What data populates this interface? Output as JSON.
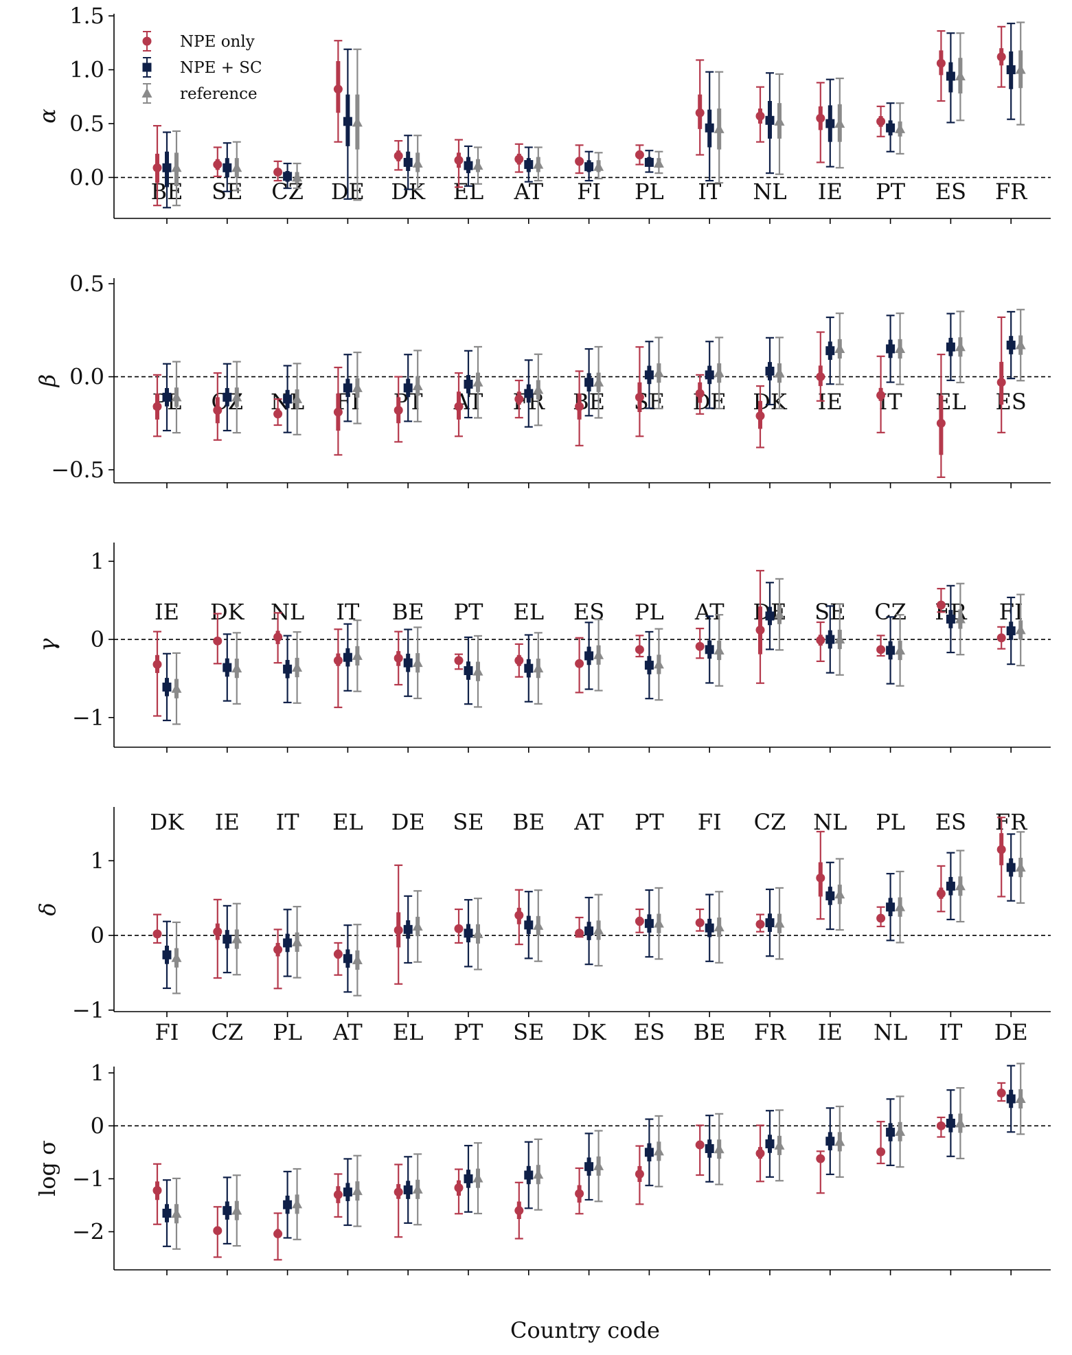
{
  "figure": {
    "xlabel": "Country code"
  },
  "legend": {
    "entries": [
      {
        "label": "NPE only",
        "color": "#b5394c",
        "marker": "circle"
      },
      {
        "label": "NPE + SC",
        "color": "#0f2048",
        "marker": "square"
      },
      {
        "label": "reference",
        "color": "#8a8a8a",
        "marker": "triangle"
      }
    ],
    "placement": "top-left of first panel"
  },
  "colors": {
    "npe": "#b5394c",
    "npesc": "#0f2048",
    "ref": "#8a8a8a",
    "zero_line": "#000000"
  },
  "chart_data": [
    {
      "type": "errorbar",
      "ylabel": "α",
      "ylim": [
        -0.38,
        1.52
      ],
      "yticks": [
        0.0,
        0.5,
        1.0,
        1.5
      ],
      "ytick_labels": [
        "0.0",
        "0.5",
        "1.0",
        "1.5"
      ],
      "categories": [
        "BE",
        "SE",
        "CZ",
        "DE",
        "DK",
        "EL",
        "AT",
        "FI",
        "PL",
        "IT",
        "NL",
        "IE",
        "PT",
        "ES",
        "FR"
      ],
      "series": [
        {
          "name": "NPE only",
          "value": [
            0.09,
            0.12,
            0.05,
            0.82,
            0.2,
            0.16,
            0.17,
            0.15,
            0.21,
            0.6,
            0.57,
            0.55,
            0.52,
            1.06,
            1.12
          ],
          "lo50": [
            -0.05,
            0.07,
            0.02,
            0.6,
            0.15,
            0.09,
            0.12,
            0.11,
            0.17,
            0.45,
            0.5,
            0.44,
            0.47,
            0.95,
            1.04
          ],
          "hi50": [
            0.22,
            0.17,
            0.08,
            1.08,
            0.25,
            0.23,
            0.22,
            0.19,
            0.25,
            0.77,
            0.64,
            0.66,
            0.57,
            1.18,
            1.2
          ],
          "lo95": [
            -0.26,
            0.01,
            -0.03,
            0.33,
            0.07,
            -0.09,
            0.05,
            0.04,
            0.12,
            0.21,
            0.33,
            0.14,
            0.38,
            0.71,
            0.84
          ],
          "hi95": [
            0.48,
            0.28,
            0.15,
            1.27,
            0.34,
            0.35,
            0.31,
            0.3,
            0.3,
            1.09,
            0.84,
            0.88,
            0.66,
            1.36,
            1.4
          ]
        },
        {
          "name": "NPE + SC",
          "value": [
            0.09,
            0.09,
            0.01,
            0.52,
            0.14,
            0.11,
            0.12,
            0.1,
            0.14,
            0.46,
            0.53,
            0.5,
            0.46,
            0.94,
            1.0
          ],
          "lo50": [
            -0.09,
            0.0,
            -0.04,
            0.29,
            0.06,
            0.04,
            0.05,
            0.05,
            0.1,
            0.28,
            0.36,
            0.33,
            0.39,
            0.79,
            0.82
          ],
          "hi50": [
            0.24,
            0.18,
            0.06,
            0.77,
            0.24,
            0.19,
            0.18,
            0.16,
            0.19,
            0.63,
            0.71,
            0.67,
            0.53,
            1.07,
            1.17
          ],
          "lo95": [
            -0.28,
            -0.13,
            -0.1,
            -0.2,
            -0.11,
            -0.08,
            -0.04,
            -0.03,
            0.05,
            -0.03,
            0.04,
            0.1,
            0.24,
            0.51,
            0.54
          ],
          "hi95": [
            0.42,
            0.32,
            0.13,
            1.19,
            0.39,
            0.29,
            0.28,
            0.24,
            0.25,
            0.98,
            0.97,
            0.91,
            0.69,
            1.34,
            1.43
          ]
        },
        {
          "name": "reference",
          "value": [
            0.09,
            0.09,
            0.0,
            0.51,
            0.13,
            0.11,
            0.12,
            0.1,
            0.13,
            0.45,
            0.52,
            0.5,
            0.45,
            0.94,
            1.0
          ],
          "lo50": [
            -0.08,
            0.0,
            -0.05,
            0.26,
            0.05,
            0.05,
            0.05,
            0.05,
            0.09,
            0.26,
            0.36,
            0.33,
            0.38,
            0.78,
            0.83
          ],
          "hi50": [
            0.23,
            0.18,
            0.05,
            0.77,
            0.23,
            0.17,
            0.19,
            0.16,
            0.18,
            0.64,
            0.69,
            0.68,
            0.52,
            1.11,
            1.18
          ],
          "lo95": [
            -0.26,
            -0.12,
            -0.1,
            -0.21,
            -0.11,
            -0.06,
            -0.03,
            -0.01,
            0.04,
            -0.05,
            0.03,
            0.09,
            0.22,
            0.53,
            0.49
          ],
          "hi95": [
            0.43,
            0.33,
            0.13,
            1.19,
            0.39,
            0.28,
            0.28,
            0.23,
            0.24,
            0.98,
            0.96,
            0.92,
            0.69,
            1.34,
            1.44
          ]
        }
      ]
    },
    {
      "type": "errorbar",
      "ylabel": "β",
      "ylim": [
        -0.57,
        0.53
      ],
      "yticks": [
        -0.5,
        0.0,
        0.5
      ],
      "ytick_labels": [
        "−0.5",
        "0.0",
        "0.5"
      ],
      "categories": [
        "PL",
        "CZ",
        "NL",
        "FI",
        "PT",
        "AT",
        "FR",
        "BE",
        "SE",
        "DE",
        "DK",
        "IE",
        "IT",
        "EL",
        "ES"
      ],
      "series": [
        {
          "name": "NPE only",
          "value": [
            -0.16,
            -0.18,
            -0.2,
            -0.19,
            -0.18,
            -0.16,
            -0.12,
            -0.16,
            -0.11,
            -0.09,
            -0.21,
            0.0,
            -0.1,
            -0.25,
            -0.03
          ],
          "lo50": [
            -0.23,
            -0.25,
            -0.22,
            -0.29,
            -0.25,
            -0.23,
            -0.15,
            -0.23,
            -0.19,
            -0.14,
            -0.28,
            -0.05,
            -0.13,
            -0.42,
            -0.15
          ],
          "hi50": [
            -0.09,
            -0.11,
            -0.17,
            -0.09,
            -0.11,
            -0.08,
            -0.08,
            -0.09,
            -0.03,
            -0.03,
            -0.13,
            0.06,
            -0.06,
            -0.1,
            0.08
          ],
          "lo95": [
            -0.32,
            -0.34,
            -0.26,
            -0.42,
            -0.35,
            -0.32,
            -0.22,
            -0.37,
            -0.32,
            -0.2,
            -0.38,
            -0.13,
            -0.3,
            -0.54,
            -0.3
          ],
          "hi95": [
            0.01,
            0.02,
            -0.12,
            0.05,
            0.0,
            0.02,
            -0.02,
            0.03,
            0.16,
            0.01,
            -0.05,
            0.24,
            0.11,
            0.12,
            0.32
          ]
        },
        {
          "name": "NPE + SC",
          "value": [
            -0.11,
            -0.11,
            -0.12,
            -0.06,
            -0.06,
            -0.04,
            -0.09,
            -0.03,
            0.01,
            0.01,
            0.03,
            0.14,
            0.15,
            0.16,
            0.17
          ]
        },
        {
          "name": "reference",
          "value": [
            -0.11,
            -0.11,
            -0.12,
            -0.06,
            -0.05,
            -0.03,
            -0.07,
            -0.03,
            0.02,
            0.02,
            0.02,
            0.15,
            0.15,
            0.16,
            0.17
          ]
        }
      ]
    },
    {
      "type": "errorbar",
      "ylabel": "γ",
      "ylim": [
        -1.38,
        1.24
      ],
      "yticks": [
        -1,
        0,
        1
      ],
      "ytick_labels": [
        "−1",
        "0",
        "1"
      ],
      "categories": [
        "IE",
        "DK",
        "NL",
        "IT",
        "BE",
        "PT",
        "EL",
        "ES",
        "PL",
        "AT",
        "DE",
        "SE",
        "CZ",
        "FR",
        "FI"
      ],
      "series": [
        {
          "name": "NPE only",
          "value": [
            -0.32,
            -0.02,
            0.03,
            -0.27,
            -0.24,
            -0.27,
            -0.27,
            -0.31,
            -0.13,
            -0.09,
            0.12,
            -0.01,
            -0.13,
            0.44,
            0.02
          ],
          "lo50": [
            -0.43,
            -0.06,
            -0.06,
            -0.34,
            -0.34,
            -0.29,
            -0.34,
            -0.32,
            -0.17,
            -0.14,
            -0.19,
            -0.08,
            -0.16,
            0.42,
            -0.02
          ],
          "hi50": [
            -0.2,
            0.03,
            0.11,
            -0.18,
            -0.15,
            -0.24,
            -0.2,
            -0.29,
            -0.09,
            -0.05,
            0.42,
            0.06,
            -0.09,
            0.46,
            0.06
          ],
          "lo95": [
            -0.98,
            -0.31,
            -0.3,
            -0.87,
            -0.58,
            -0.38,
            -0.48,
            -0.68,
            -0.22,
            -0.24,
            -0.56,
            -0.28,
            -0.21,
            0.35,
            -0.12
          ],
          "hi95": [
            0.1,
            0.33,
            0.34,
            0.13,
            0.1,
            -0.19,
            -0.06,
            0.02,
            0.05,
            0.14,
            0.88,
            0.22,
            0.05,
            0.65,
            0.16
          ]
        },
        {
          "name": "NPE + SC",
          "value": [
            -0.61,
            -0.36,
            -0.38,
            -0.23,
            -0.3,
            -0.4,
            -0.37,
            -0.21,
            -0.33,
            -0.13,
            0.3,
            0.0,
            -0.14,
            0.26,
            0.11
          ]
        },
        {
          "name": "reference",
          "value": [
            -0.63,
            -0.37,
            -0.36,
            -0.21,
            -0.3,
            -0.41,
            -0.37,
            -0.2,
            -0.32,
            -0.14,
            0.32,
            0.0,
            -0.14,
            0.26,
            0.12
          ]
        }
      ]
    },
    {
      "type": "errorbar",
      "ylabel": "δ",
      "ylim": [
        -1.02,
        1.72
      ],
      "yticks": [
        -1,
        0,
        1
      ],
      "ytick_labels": [
        "−1",
        "0",
        "1"
      ],
      "categories": [
        "DK",
        "IE",
        "IT",
        "EL",
        "DE",
        "SE",
        "BE",
        "AT",
        "PT",
        "FI",
        "CZ",
        "NL",
        "PL",
        "ES",
        "FR"
      ],
      "series": [
        {
          "name": "NPE only",
          "value": [
            0.02,
            0.05,
            -0.19,
            -0.25,
            0.07,
            0.09,
            0.27,
            0.03,
            0.19,
            0.17,
            0.15,
            0.77,
            0.23,
            0.56,
            1.15
          ],
          "lo50": [
            -0.02,
            -0.06,
            -0.28,
            -0.31,
            -0.16,
            0.04,
            0.15,
            0.02,
            0.13,
            0.13,
            0.12,
            0.52,
            0.19,
            0.49,
            0.94
          ],
          "hi50": [
            0.06,
            0.16,
            -0.1,
            -0.19,
            0.31,
            0.14,
            0.37,
            0.05,
            0.25,
            0.21,
            0.18,
            0.98,
            0.27,
            0.64,
            1.37
          ],
          "lo95": [
            -0.1,
            -0.57,
            -0.71,
            -0.53,
            -0.65,
            -0.1,
            -0.12,
            -0.02,
            0.04,
            0.06,
            0.05,
            0.22,
            0.12,
            0.32,
            0.52
          ],
          "hi95": [
            0.28,
            0.48,
            0.08,
            -0.1,
            0.94,
            0.35,
            0.61,
            0.24,
            0.35,
            0.35,
            0.28,
            1.39,
            0.38,
            0.93,
            1.58
          ]
        },
        {
          "name": "NPE + SC",
          "value": [
            -0.26,
            -0.05,
            -0.1,
            -0.31,
            0.08,
            0.03,
            0.14,
            0.06,
            0.16,
            0.1,
            0.17,
            0.53,
            0.38,
            0.66,
            0.91
          ]
        },
        {
          "name": "reference",
          "value": [
            -0.3,
            -0.05,
            -0.09,
            -0.33,
            0.12,
            0.02,
            0.13,
            0.07,
            0.16,
            0.11,
            0.16,
            0.55,
            0.38,
            0.66,
            0.91
          ]
        }
      ]
    },
    {
      "type": "errorbar",
      "ylabel": "log σ",
      "ylim": [
        -2.72,
        1.12
      ],
      "yticks": [
        -2,
        -1,
        0,
        1
      ],
      "ytick_labels": [
        "−2",
        "−1",
        "0",
        "1"
      ],
      "categories": [
        "FI",
        "CZ",
        "PL",
        "AT",
        "EL",
        "PT",
        "SE",
        "DK",
        "ES",
        "BE",
        "FR",
        "IE",
        "NL",
        "IT",
        "DE"
      ],
      "series": [
        {
          "name": "NPE only",
          "value": [
            -1.22,
            -1.98,
            -2.04,
            -1.3,
            -1.25,
            -1.17,
            -1.6,
            -1.28,
            -0.91,
            -0.36,
            -0.52,
            -0.62,
            -0.49,
            0.0,
            0.62
          ],
          "lo50": [
            -1.4,
            -2.04,
            -2.1,
            -1.46,
            -1.38,
            -1.32,
            -1.76,
            -1.45,
            -1.06,
            -0.43,
            -0.62,
            -0.65,
            -0.56,
            -0.05,
            0.55
          ],
          "hi50": [
            -1.05,
            -1.9,
            -1.95,
            -1.14,
            -1.1,
            -1.03,
            -1.43,
            -1.12,
            -0.76,
            -0.28,
            -0.4,
            -0.58,
            -0.43,
            0.04,
            0.69
          ],
          "lo95": [
            -1.86,
            -2.48,
            -2.53,
            -1.72,
            -2.1,
            -1.66,
            -2.13,
            -1.66,
            -1.48,
            -0.93,
            -1.05,
            -1.27,
            -0.71,
            -0.21,
            0.47
          ],
          "hi95": [
            -0.72,
            -1.53,
            -1.65,
            -0.91,
            -0.73,
            -0.82,
            -1.07,
            -0.8,
            -0.38,
            0.01,
            0.01,
            -0.48,
            0.08,
            0.16,
            0.81
          ]
        },
        {
          "name": "NPE + SC",
          "value": [
            -1.65,
            -1.6,
            -1.49,
            -1.25,
            -1.21,
            -1.0,
            -0.93,
            -0.77,
            -0.5,
            -0.43,
            -0.34,
            -0.29,
            -0.12,
            0.05,
            0.51
          ]
        },
        {
          "name": "reference",
          "value": [
            -1.66,
            -1.6,
            -1.48,
            -1.23,
            -1.2,
            -0.99,
            -0.92,
            -0.76,
            -0.48,
            -0.44,
            -0.37,
            -0.3,
            -0.11,
            0.05,
            0.51
          ]
        }
      ]
    }
  ]
}
